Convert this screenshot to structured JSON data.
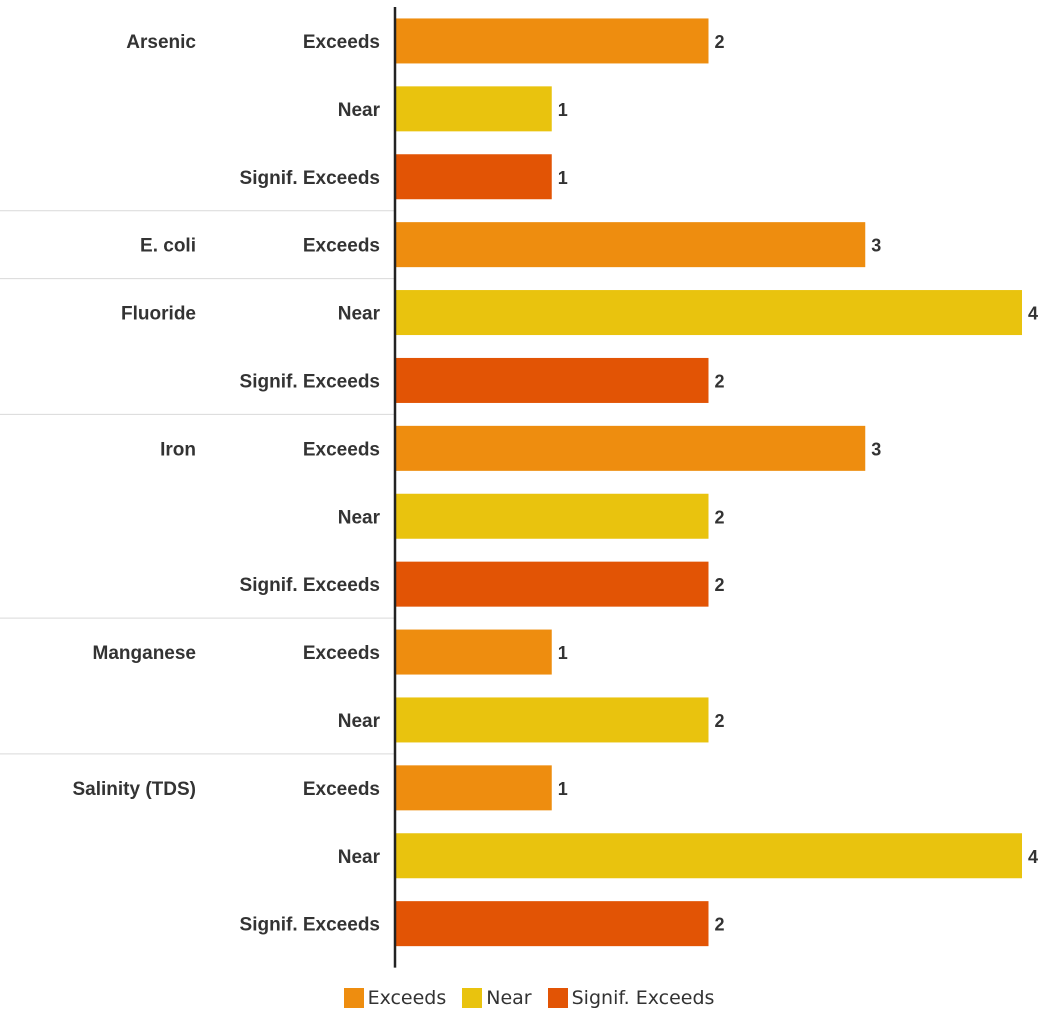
{
  "chart_data": {
    "type": "bar",
    "orientation": "horizontal",
    "grouped_categories": true,
    "value_labels": true,
    "xlim": [
      0,
      4
    ],
    "groups": [
      {
        "name": "Arsenic",
        "rows": [
          {
            "category": "Exceeds",
            "value": 2
          },
          {
            "category": "Near",
            "value": 1
          },
          {
            "category": "Signif. Exceeds",
            "value": 1
          }
        ]
      },
      {
        "name": "E. coli",
        "rows": [
          {
            "category": "Exceeds",
            "value": 3
          }
        ]
      },
      {
        "name": "Fluoride",
        "rows": [
          {
            "category": "Near",
            "value": 4
          },
          {
            "category": "Signif. Exceeds",
            "value": 2
          }
        ]
      },
      {
        "name": "Iron",
        "rows": [
          {
            "category": "Exceeds",
            "value": 3
          },
          {
            "category": "Near",
            "value": 2
          },
          {
            "category": "Signif. Exceeds",
            "value": 2
          }
        ]
      },
      {
        "name": "Manganese",
        "rows": [
          {
            "category": "Exceeds",
            "value": 1
          },
          {
            "category": "Near",
            "value": 2
          }
        ]
      },
      {
        "name": "Salinity (TDS)",
        "rows": [
          {
            "category": "Exceeds",
            "value": 1
          },
          {
            "category": "Near",
            "value": 4
          },
          {
            "category": "Signif. Exceeds",
            "value": 2
          }
        ]
      }
    ],
    "legend": {
      "position": "bottom",
      "entries": [
        {
          "name": "Exceeds",
          "color": "#EE8D0F"
        },
        {
          "name": "Near",
          "color": "#E9C30E"
        },
        {
          "name": "Signif. Exceeds",
          "color": "#E25405"
        }
      ]
    }
  }
}
